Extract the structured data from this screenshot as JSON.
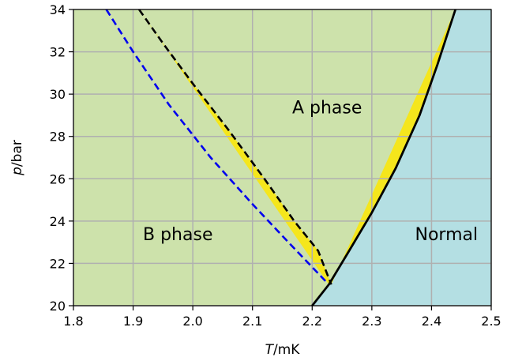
{
  "chart_data": {
    "type": "area",
    "xlabel_var": "T",
    "xlabel_unit": "/mK",
    "ylabel_var": "p",
    "ylabel_unit": "/bar",
    "xlim": [
      1.8,
      2.5
    ],
    "ylim": [
      20,
      34
    ],
    "grid": true,
    "x_ticks": [
      "1.8",
      "1.9",
      "2.0",
      "2.1",
      "2.2",
      "2.3",
      "2.4",
      "2.5"
    ],
    "y_ticks": [
      "20",
      "22",
      "24",
      "26",
      "28",
      "30",
      "32",
      "34"
    ],
    "colors": {
      "b_phase": "#cde2ab",
      "a_phase": "#f5e61c",
      "normal": "#b4dfe3",
      "grid": "#b0b0b0",
      "solid_line": "#000000",
      "dashed_black": "#000000",
      "dashed_blue": "#0000ee"
    },
    "series": [
      {
        "style": "solid",
        "x": [
          2.2,
          2.228,
          2.26,
          2.3,
          2.34,
          2.38,
          2.41,
          2.44
        ],
        "y": [
          20.0,
          21.0,
          22.5,
          24.4,
          26.5,
          29.0,
          31.4,
          34.0
        ]
      },
      {
        "style": "dashed",
        "x": [
          1.91,
          1.95,
          2.0,
          2.06,
          2.12,
          2.17,
          2.21,
          2.232
        ],
        "y": [
          34.0,
          32.4,
          30.5,
          28.3,
          26.0,
          24.0,
          22.6,
          21.0
        ]
      },
      {
        "style": "dashed",
        "x": [
          1.855,
          1.9,
          1.96,
          2.03,
          2.1,
          2.16,
          2.228
        ],
        "y": [
          34.0,
          32.0,
          29.5,
          27.0,
          24.8,
          23.0,
          21.0
        ]
      }
    ],
    "annotations": [
      {
        "text": "A phase",
        "x": 2.225,
        "y": 29.1
      },
      {
        "text": "B phase",
        "x": 1.975,
        "y": 23.1
      },
      {
        "text": "Normal",
        "x": 2.425,
        "y": 23.1
      }
    ]
  }
}
